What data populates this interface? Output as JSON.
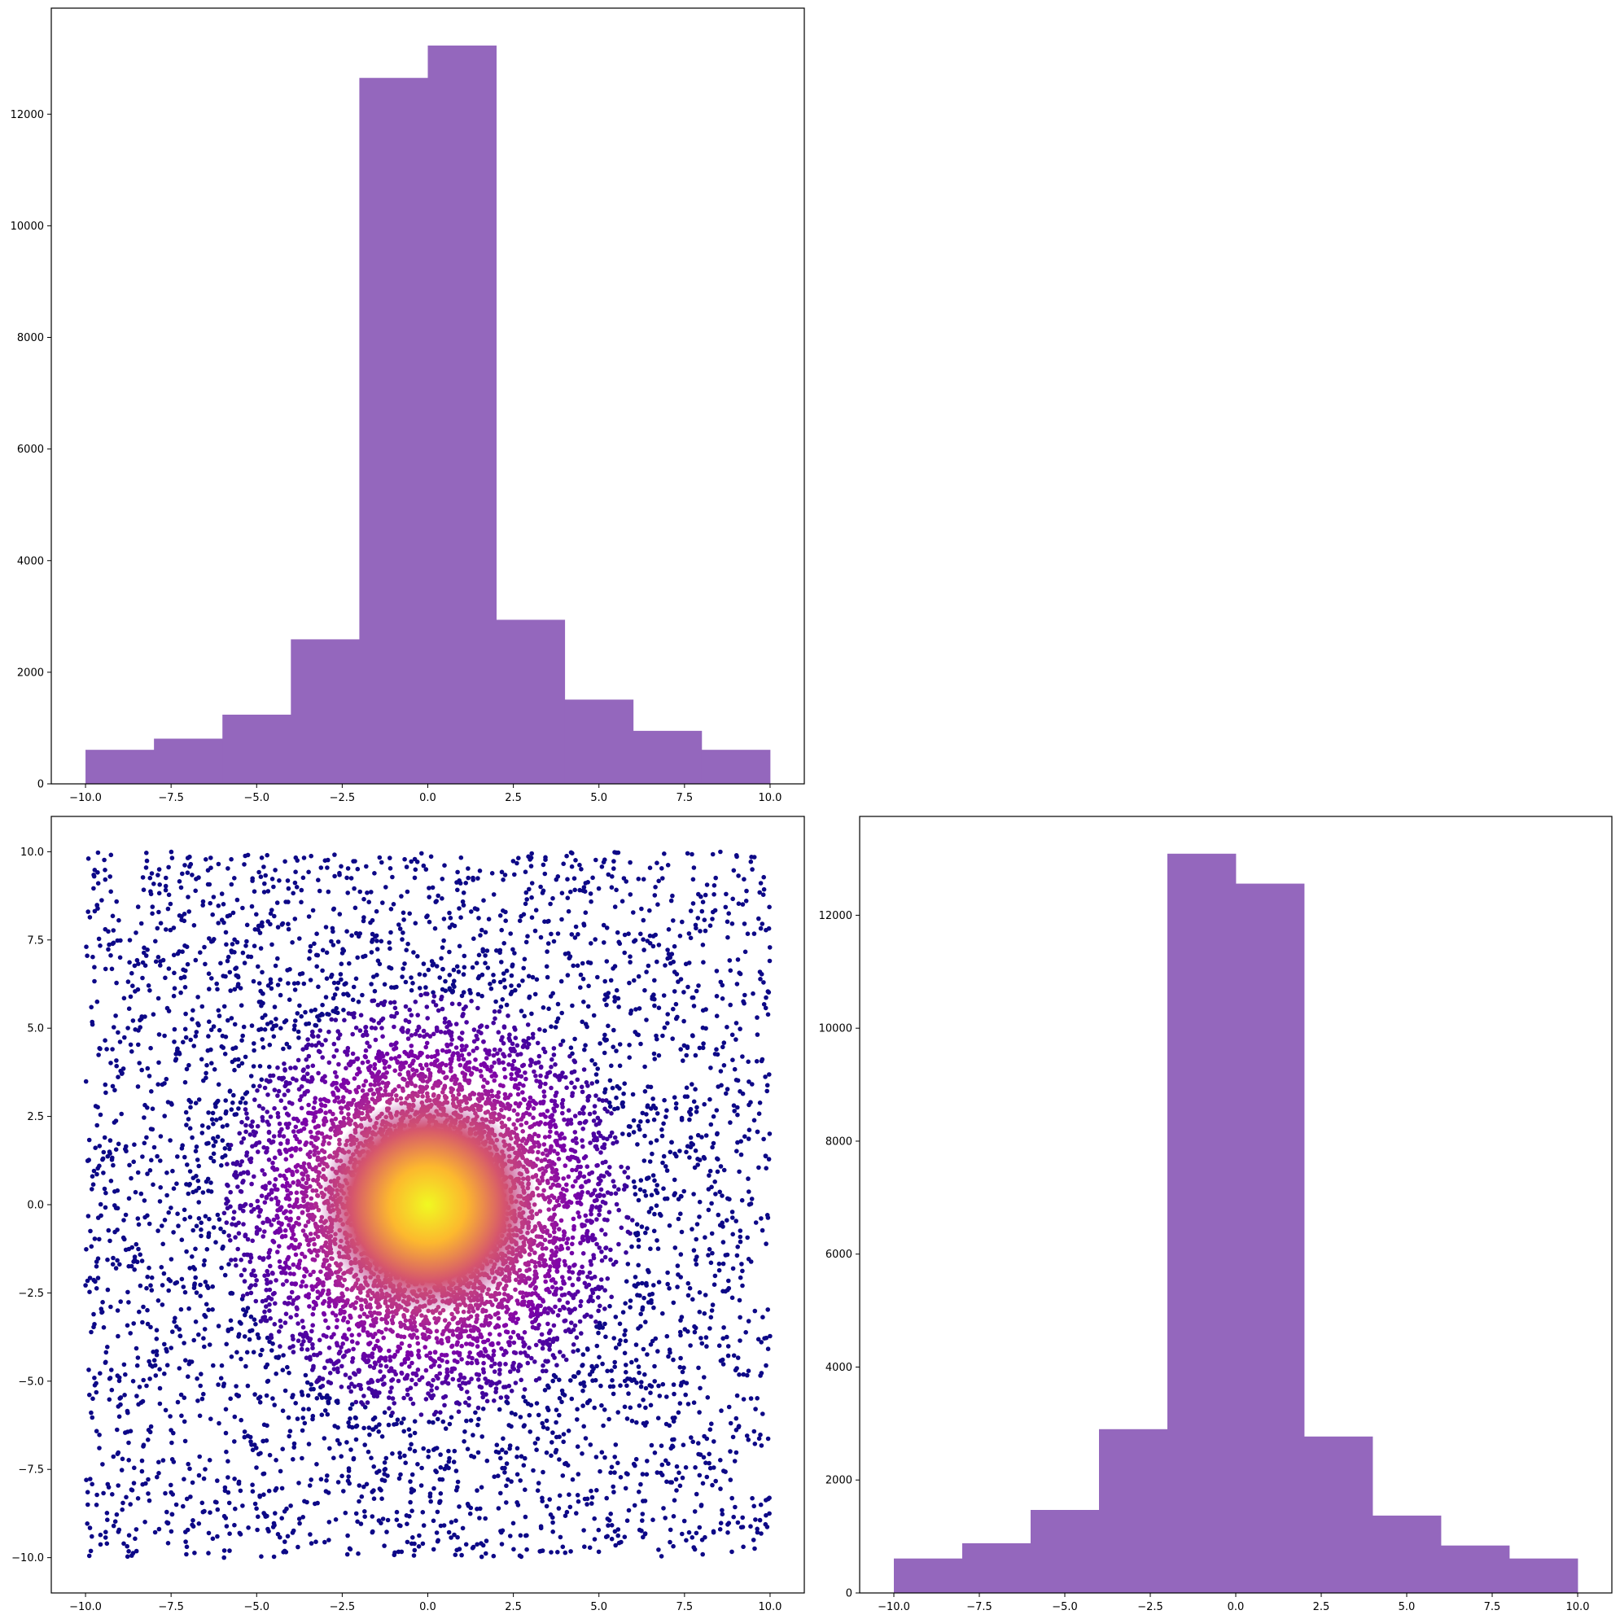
{
  "figure": {
    "background": "#ffffff",
    "bar_color": "#9467bd",
    "scatter_colormap": "plasma"
  },
  "chart_data": [
    {
      "id": "hist_x",
      "type": "bar",
      "position": "top-left",
      "title": "",
      "xlabel": "",
      "ylabel": "",
      "bin_edges": [
        -10,
        -8,
        -6,
        -4,
        -2,
        0,
        2,
        4,
        6,
        8,
        10
      ],
      "values": [
        610,
        810,
        1240,
        2590,
        12650,
        13230,
        2940,
        1510,
        950,
        610
      ],
      "xlim": [
        -11,
        11
      ],
      "ylim": [
        0,
        13900
      ],
      "xticks": [
        -10,
        -7.5,
        -5,
        -2.5,
        0,
        2.5,
        5,
        7.5,
        10
      ],
      "xtick_labels": [
        "−10.0",
        "−7.5",
        "−5.0",
        "−2.5",
        "0.0",
        "2.5",
        "5.0",
        "7.5",
        "10.0"
      ],
      "yticks": [
        0,
        2000,
        4000,
        6000,
        8000,
        10000,
        12000
      ],
      "ytick_labels": [
        "0",
        "2000",
        "4000",
        "6000",
        "8000",
        "10000",
        "12000"
      ],
      "grid": false,
      "color": "#9467bd"
    },
    {
      "id": "joint_scatter",
      "type": "scatter",
      "position": "bottom-left",
      "title": "",
      "xlabel": "",
      "ylabel": "",
      "description_of_data": "about 20000 points with x and y in [-10, 10], Cauchy-like concentration at the origin; color = density (plasma colormap)",
      "n_points": 20000,
      "x_range": [
        -10,
        10
      ],
      "y_range": [
        -10,
        10
      ],
      "center": [
        0,
        0
      ],
      "xlim": [
        -11,
        11
      ],
      "ylim": [
        -11,
        11
      ],
      "xticks": [
        -10,
        -7.5,
        -5,
        -2.5,
        0,
        2.5,
        5,
        7.5,
        10
      ],
      "xtick_labels": [
        "−10.0",
        "−7.5",
        "−5.0",
        "−2.5",
        "0.0",
        "2.5",
        "5.0",
        "7.5",
        "10.0"
      ],
      "yticks": [
        -10,
        -7.5,
        -5,
        -2.5,
        0,
        2.5,
        5,
        7.5,
        10
      ],
      "ytick_labels": [
        "−10.0",
        "−7.5",
        "−5.0",
        "−2.5",
        "0.0",
        "2.5",
        "5.0",
        "7.5",
        "10.0"
      ],
      "grid": false,
      "colormap": "plasma"
    },
    {
      "id": "hist_y",
      "type": "bar",
      "position": "bottom-right",
      "title": "",
      "xlabel": "",
      "ylabel": "",
      "bin_edges": [
        -10,
        -8,
        -6,
        -4,
        -2,
        0,
        2,
        4,
        6,
        8,
        10
      ],
      "values": [
        610,
        880,
        1470,
        2900,
        13090,
        12560,
        2770,
        1370,
        840,
        610
      ],
      "xlim": [
        -11,
        11
      ],
      "ylim": [
        0,
        13750
      ],
      "xticks": [
        -10,
        -7.5,
        -5,
        -2.5,
        0,
        2.5,
        5,
        7.5,
        10
      ],
      "xtick_labels": [
        "−10.0",
        "−7.5",
        "−5.0",
        "−2.5",
        "0.0",
        "2.5",
        "5.0",
        "7.5",
        "10.0"
      ],
      "yticks": [
        0,
        2000,
        4000,
        6000,
        8000,
        10000,
        12000
      ],
      "ytick_labels": [
        "0",
        "2000",
        "4000",
        "6000",
        "8000",
        "10000",
        "12000"
      ],
      "grid": false,
      "color": "#9467bd"
    }
  ]
}
